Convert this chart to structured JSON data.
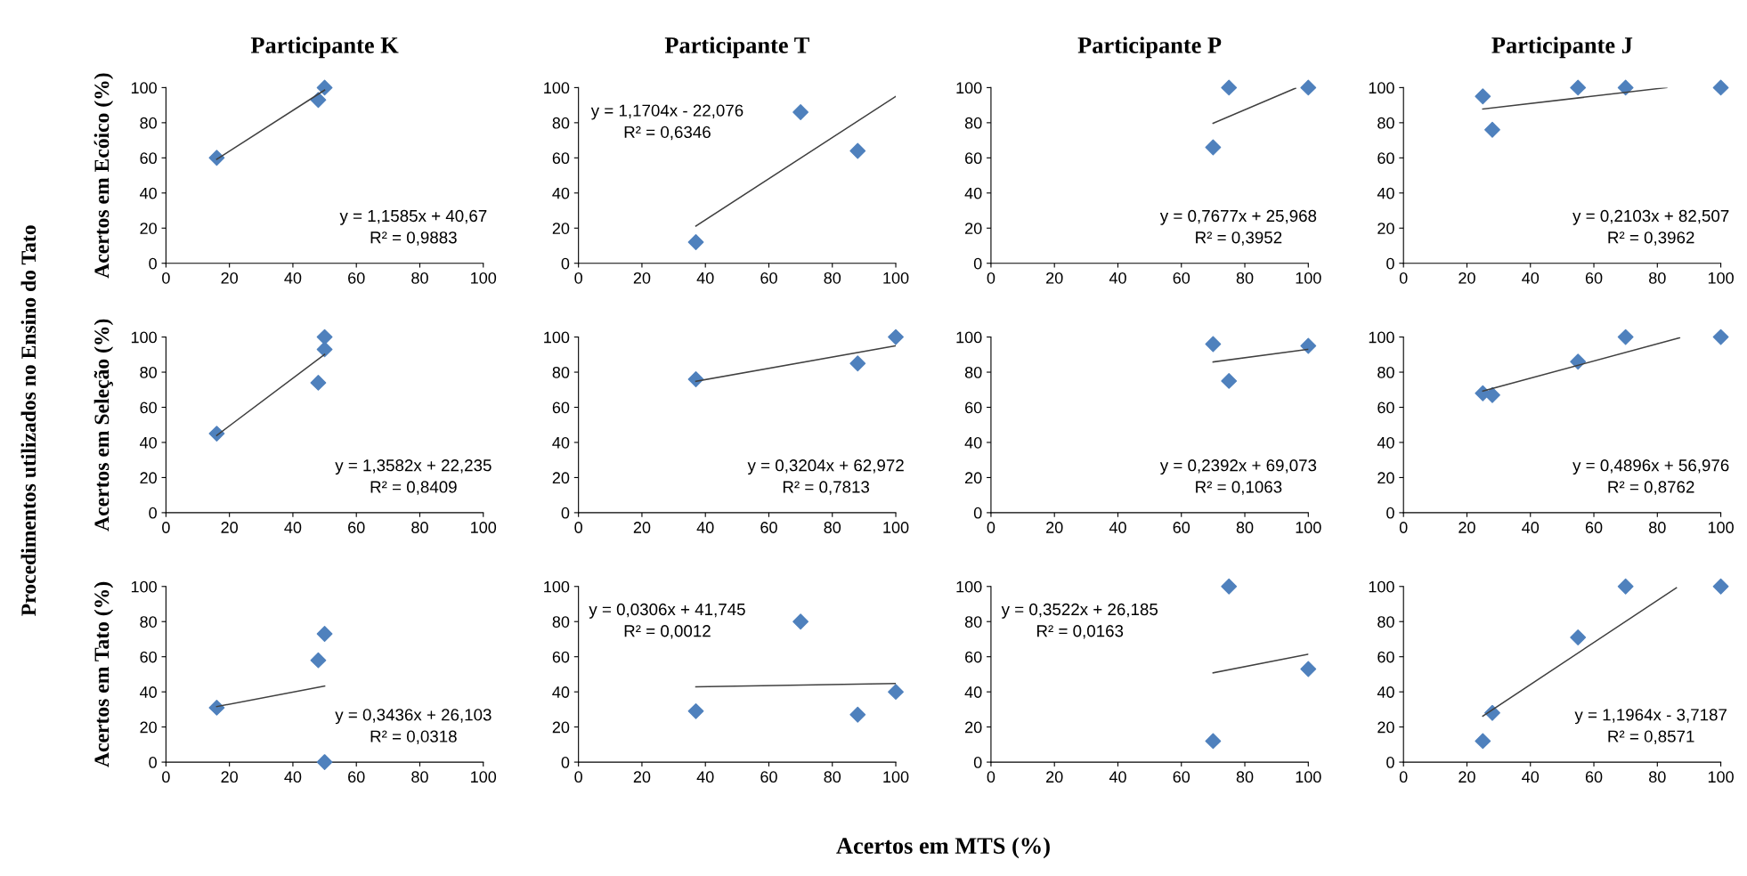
{
  "chart_data": [
    {
      "type": "scatter",
      "title": "Participante K",
      "ylabel": "Acertos em Ecóico (%)",
      "xlim": [
        0,
        100
      ],
      "ylim": [
        0,
        100
      ],
      "xticks": [
        0,
        20,
        40,
        60,
        80,
        100
      ],
      "yticks": [
        0,
        20,
        40,
        60,
        80,
        100
      ],
      "grid": false,
      "legend": false,
      "annotations": [
        "Procedimentos utilizados no Ensino do Tato",
        "y = 1,1585x + 40,67\nR² = 0,9883"
      ],
      "series": [
        {
          "color": "#4f81bd",
          "marker": "diamond",
          "x": [
            16,
            48,
            50
          ],
          "values": [
            60,
            93,
            100
          ]
        },
        {
          "type": "line",
          "marker": "none",
          "color": "#404040",
          "x": [
            16,
            50
          ],
          "values": [
            59.2,
            98.6
          ]
        }
      ]
    },
    {
      "type": "scatter",
      "title": "Participante T",
      "xlim": [
        0,
        100
      ],
      "ylim": [
        0,
        100
      ],
      "xticks": [
        0,
        20,
        40,
        60,
        80,
        100
      ],
      "yticks": [
        0,
        20,
        40,
        60,
        80,
        100
      ],
      "grid": false,
      "legend": false,
      "annotations": [
        "y = 1,1704x - 22,076\nR² = 0,6346"
      ],
      "series": [
        {
          "color": "#4f81bd",
          "marker": "diamond",
          "x": [
            37,
            70,
            88
          ],
          "values": [
            12,
            86,
            64
          ]
        },
        {
          "type": "line",
          "marker": "none",
          "color": "#404040",
          "x": [
            37,
            100
          ],
          "values": [
            21.2,
            95.0
          ]
        }
      ]
    },
    {
      "type": "scatter",
      "title": "Participante P",
      "xlim": [
        0,
        100
      ],
      "ylim": [
        0,
        100
      ],
      "xticks": [
        0,
        20,
        40,
        60,
        80,
        100
      ],
      "yticks": [
        0,
        20,
        40,
        60,
        80,
        100
      ],
      "grid": false,
      "legend": false,
      "annotations": [
        "y = 0,7677x + 25,968\nR² = 0,3952"
      ],
      "series": [
        {
          "color": "#4f81bd",
          "marker": "diamond",
          "x": [
            70,
            75,
            100
          ],
          "values": [
            66,
            100,
            100
          ]
        },
        {
          "type": "line",
          "marker": "none",
          "color": "#404040",
          "x": [
            70,
            96
          ],
          "values": [
            79.7,
            99.7
          ]
        }
      ]
    },
    {
      "type": "scatter",
      "title": "Participante J",
      "xlim": [
        0,
        100
      ],
      "ylim": [
        0,
        100
      ],
      "xticks": [
        0,
        20,
        40,
        60,
        80,
        100
      ],
      "yticks": [
        0,
        20,
        40,
        60,
        80,
        100
      ],
      "grid": false,
      "legend": false,
      "annotations": [
        "y = 0,2103x + 82,507\nR² = 0,3962"
      ],
      "series": [
        {
          "color": "#4f81bd",
          "marker": "diamond",
          "x": [
            25,
            28,
            55,
            70,
            100
          ],
          "values": [
            95,
            76,
            100,
            100,
            100
          ]
        },
        {
          "type": "line",
          "marker": "none",
          "color": "#404040",
          "x": [
            25,
            83
          ],
          "values": [
            87.8,
            100.0
          ]
        }
      ]
    },
    {
      "type": "scatter",
      "ylabel": "Acertos em Seleção (%)",
      "xlim": [
        0,
        100
      ],
      "ylim": [
        0,
        100
      ],
      "xticks": [
        0,
        20,
        40,
        60,
        80,
        100
      ],
      "yticks": [
        0,
        20,
        40,
        60,
        80,
        100
      ],
      "grid": false,
      "legend": false,
      "annotations": [
        "y = 1,3582x + 22,235\nR² = 0,8409"
      ],
      "series": [
        {
          "color": "#4f81bd",
          "marker": "diamond",
          "x": [
            16,
            48,
            50,
            50
          ],
          "values": [
            45,
            74,
            93,
            100
          ]
        },
        {
          "type": "line",
          "marker": "none",
          "color": "#404040",
          "x": [
            16,
            50
          ],
          "values": [
            44.0,
            90.1
          ]
        }
      ]
    },
    {
      "type": "scatter",
      "xlim": [
        0,
        100
      ],
      "ylim": [
        0,
        100
      ],
      "xticks": [
        0,
        20,
        40,
        60,
        80,
        100
      ],
      "yticks": [
        0,
        20,
        40,
        60,
        80,
        100
      ],
      "grid": false,
      "legend": false,
      "annotations": [
        "y = 0,3204x + 62,972\nR² = 0,7813"
      ],
      "series": [
        {
          "color": "#4f81bd",
          "marker": "diamond",
          "x": [
            37,
            88,
            100
          ],
          "values": [
            76,
            85,
            100
          ]
        },
        {
          "type": "line",
          "marker": "none",
          "color": "#404040",
          "x": [
            37,
            100
          ],
          "values": [
            74.8,
            95.0
          ]
        }
      ]
    },
    {
      "type": "scatter",
      "xlim": [
        0,
        100
      ],
      "ylim": [
        0,
        100
      ],
      "xticks": [
        0,
        20,
        40,
        60,
        80,
        100
      ],
      "yticks": [
        0,
        20,
        40,
        60,
        80,
        100
      ],
      "grid": false,
      "legend": false,
      "annotations": [
        "y = 0,2392x + 69,073\nR² = 0,1063"
      ],
      "series": [
        {
          "color": "#4f81bd",
          "marker": "diamond",
          "x": [
            70,
            75,
            100
          ],
          "values": [
            96,
            75,
            95
          ]
        },
        {
          "type": "line",
          "marker": "none",
          "color": "#404040",
          "x": [
            70,
            100
          ],
          "values": [
            85.8,
            93.0
          ]
        }
      ]
    },
    {
      "type": "scatter",
      "xlim": [
        0,
        100
      ],
      "ylim": [
        0,
        100
      ],
      "xticks": [
        0,
        20,
        40,
        60,
        80,
        100
      ],
      "yticks": [
        0,
        20,
        40,
        60,
        80,
        100
      ],
      "grid": false,
      "legend": false,
      "annotations": [
        "y = 0,4896x + 56,976\nR² = 0,8762"
      ],
      "series": [
        {
          "color": "#4f81bd",
          "marker": "diamond",
          "x": [
            25,
            28,
            55,
            70,
            100
          ],
          "values": [
            68,
            67,
            86,
            100,
            100
          ]
        },
        {
          "type": "line",
          "marker": "none",
          "color": "#404040",
          "x": [
            25,
            87
          ],
          "values": [
            69.2,
            99.6
          ]
        }
      ]
    },
    {
      "type": "scatter",
      "ylabel": "Acertos em Tato (%)",
      "xlim": [
        0,
        100
      ],
      "ylim": [
        0,
        100
      ],
      "xticks": [
        0,
        20,
        40,
        60,
        80,
        100
      ],
      "yticks": [
        0,
        20,
        40,
        60,
        80,
        100
      ],
      "grid": false,
      "legend": false,
      "annotations": [
        "Acertos em MTS (%)",
        "y = 0,3436x + 26,103\nR² = 0,0318"
      ],
      "series": [
        {
          "color": "#4f81bd",
          "marker": "diamond",
          "x": [
            16,
            48,
            50,
            50
          ],
          "values": [
            31,
            58,
            73,
            0
          ]
        },
        {
          "type": "line",
          "marker": "none",
          "color": "#404040",
          "x": [
            16,
            50
          ],
          "values": [
            31.6,
            43.3
          ]
        }
      ]
    },
    {
      "type": "scatter",
      "xlim": [
        0,
        100
      ],
      "ylim": [
        0,
        100
      ],
      "xticks": [
        0,
        20,
        40,
        60,
        80,
        100
      ],
      "yticks": [
        0,
        20,
        40,
        60,
        80,
        100
      ],
      "grid": false,
      "legend": false,
      "annotations": [
        "y = 0,0306x + 41,745\nR² = 0,0012"
      ],
      "series": [
        {
          "color": "#4f81bd",
          "marker": "diamond",
          "x": [
            37,
            70,
            88,
            100
          ],
          "values": [
            29,
            80,
            27,
            40
          ]
        },
        {
          "type": "line",
          "marker": "none",
          "color": "#404040",
          "x": [
            37,
            100
          ],
          "values": [
            42.9,
            44.8
          ]
        }
      ]
    },
    {
      "type": "scatter",
      "xlim": [
        0,
        100
      ],
      "ylim": [
        0,
        100
      ],
      "xticks": [
        0,
        20,
        40,
        60,
        80,
        100
      ],
      "yticks": [
        0,
        20,
        40,
        60,
        80,
        100
      ],
      "grid": false,
      "legend": false,
      "annotations": [
        "y = 0,3522x + 26,185\nR² = 0,0163"
      ],
      "series": [
        {
          "color": "#4f81bd",
          "marker": "diamond",
          "x": [
            70,
            75,
            100
          ],
          "values": [
            12,
            100,
            53
          ]
        },
        {
          "type": "line",
          "marker": "none",
          "color": "#404040",
          "x": [
            70,
            100
          ],
          "values": [
            50.8,
            61.4
          ]
        }
      ]
    },
    {
      "type": "scatter",
      "xlim": [
        0,
        100
      ],
      "ylim": [
        0,
        100
      ],
      "xticks": [
        0,
        20,
        40,
        60,
        80,
        100
      ],
      "yticks": [
        0,
        20,
        40,
        60,
        80,
        100
      ],
      "grid": false,
      "legend": false,
      "annotations": [
        "y = 1,1964x - 3,7187\nR² = 0,8571"
      ],
      "series": [
        {
          "color": "#4f81bd",
          "marker": "diamond",
          "x": [
            25,
            28,
            55,
            70,
            100
          ],
          "values": [
            12,
            28,
            71,
            100,
            100
          ]
        },
        {
          "type": "line",
          "marker": "none",
          "color": "#404040",
          "x": [
            25,
            86
          ],
          "values": [
            26.2,
            99.2
          ]
        }
      ]
    }
  ]
}
